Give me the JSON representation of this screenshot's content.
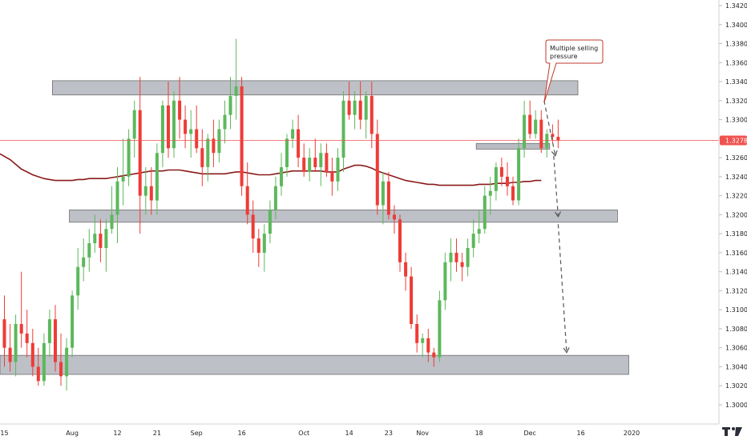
{
  "chart_data": {
    "type": "candlestick",
    "y_axis": {
      "ticks": [
        "1.34200",
        "1.34000",
        "1.33800",
        "1.33600",
        "1.33400",
        "1.33200",
        "1.33000",
        "1.32800",
        "1.32600",
        "1.32400",
        "1.32200",
        "1.32000",
        "1.31800",
        "1.31600",
        "1.31400",
        "1.31200",
        "1.31000",
        "1.30800",
        "1.30600",
        "1.30400",
        "1.30200",
        "1.30000"
      ],
      "range": [
        1.299,
        1.3428
      ]
    },
    "x_axis": {
      "ticks": [
        {
          "label": "15",
          "index": 0
        },
        {
          "label": "Aug",
          "index": 12
        },
        {
          "label": "12",
          "index": 20
        },
        {
          "label": "21",
          "index": 27
        },
        {
          "label": "Sep",
          "index": 34
        },
        {
          "label": "16",
          "index": 42
        },
        {
          "label": "Oct",
          "index": 53
        },
        {
          "label": "14",
          "index": 61
        },
        {
          "label": "23",
          "index": 68
        },
        {
          "label": "Nov",
          "index": 74
        },
        {
          "label": "18",
          "index": 84
        },
        {
          "label": "Dec",
          "index": 93
        },
        {
          "label": "16",
          "index": 102
        },
        {
          "label": "2020",
          "index": 111
        }
      ]
    },
    "current_price": "1.32782",
    "current_price_value": 1.32782,
    "colors": {
      "up": "#5cb85c",
      "down": "#ef3b36",
      "ma": "#8b1a1a",
      "zone_fill": "#b3b5bd",
      "zone_stroke": "#6e6e6e",
      "price_line": "#ef5350",
      "badge": "#ef5350",
      "arrow": "#555555",
      "callout_border": "#c0392b"
    },
    "candles": [
      [
        1.309,
        1.3115,
        1.304,
        1.306
      ],
      [
        1.306,
        1.3085,
        1.3035,
        1.3045
      ],
      [
        1.3045,
        1.3095,
        1.303,
        1.3085
      ],
      [
        1.3085,
        1.314,
        1.306,
        1.3075
      ],
      [
        1.3075,
        1.31,
        1.305,
        1.3065
      ],
      [
        1.3065,
        1.308,
        1.303,
        1.304
      ],
      [
        1.304,
        1.306,
        1.302,
        1.3025
      ],
      [
        1.3025,
        1.3075,
        1.302,
        1.3065
      ],
      [
        1.3065,
        1.31,
        1.305,
        1.309
      ],
      [
        1.309,
        1.3105,
        1.3035,
        1.3045
      ],
      [
        1.3045,
        1.3075,
        1.302,
        1.303
      ],
      [
        1.303,
        1.307,
        1.3015,
        1.306
      ],
      [
        1.306,
        1.312,
        1.305,
        1.3115
      ],
      [
        1.3115,
        1.3165,
        1.31,
        1.3145
      ],
      [
        1.3145,
        1.3175,
        1.313,
        1.3155
      ],
      [
        1.3155,
        1.3185,
        1.314,
        1.317
      ],
      [
        1.317,
        1.32,
        1.316,
        1.318
      ],
      [
        1.318,
        1.3195,
        1.315,
        1.3165
      ],
      [
        1.3165,
        1.3195,
        1.314,
        1.3185
      ],
      [
        1.3185,
        1.323,
        1.318,
        1.32
      ],
      [
        1.32,
        1.325,
        1.317,
        1.3235
      ],
      [
        1.3235,
        1.328,
        1.321,
        1.324
      ],
      [
        1.324,
        1.329,
        1.323,
        1.328
      ],
      [
        1.328,
        1.332,
        1.326,
        1.331
      ],
      [
        1.331,
        1.3345,
        1.318,
        1.322
      ],
      [
        1.322,
        1.325,
        1.32,
        1.323
      ],
      [
        1.323,
        1.325,
        1.32,
        1.3215
      ],
      [
        1.3215,
        1.3275,
        1.32,
        1.3265
      ],
      [
        1.3265,
        1.332,
        1.325,
        1.3315
      ],
      [
        1.3315,
        1.334,
        1.326,
        1.327
      ],
      [
        1.327,
        1.333,
        1.326,
        1.332
      ],
      [
        1.332,
        1.3345,
        1.328,
        1.33
      ],
      [
        1.33,
        1.3315,
        1.327,
        1.3285
      ],
      [
        1.3285,
        1.331,
        1.326,
        1.329
      ],
      [
        1.329,
        1.3315,
        1.3265,
        1.327
      ],
      [
        1.327,
        1.329,
        1.323,
        1.325
      ],
      [
        1.325,
        1.3285,
        1.3235,
        1.328
      ],
      [
        1.328,
        1.33,
        1.325,
        1.3265
      ],
      [
        1.3265,
        1.33,
        1.3255,
        1.329
      ],
      [
        1.329,
        1.332,
        1.3275,
        1.3305
      ],
      [
        1.3305,
        1.3345,
        1.329,
        1.3325
      ],
      [
        1.3325,
        1.3385,
        1.33,
        1.3335
      ],
      [
        1.3335,
        1.3345,
        1.322,
        1.323
      ],
      [
        1.323,
        1.3255,
        1.319,
        1.32
      ],
      [
        1.32,
        1.3215,
        1.316,
        1.3175
      ],
      [
        1.3175,
        1.3185,
        1.3145,
        1.316
      ],
      [
        1.316,
        1.319,
        1.314,
        1.318
      ],
      [
        1.318,
        1.3215,
        1.317,
        1.3205
      ],
      [
        1.3205,
        1.324,
        1.3195,
        1.323
      ],
      [
        1.323,
        1.3265,
        1.322,
        1.325
      ],
      [
        1.325,
        1.3285,
        1.324,
        1.328
      ],
      [
        1.328,
        1.33,
        1.327,
        1.329
      ],
      [
        1.329,
        1.3305,
        1.325,
        1.326
      ],
      [
        1.326,
        1.3275,
        1.324,
        1.3245
      ],
      [
        1.3245,
        1.327,
        1.3235,
        1.326
      ],
      [
        1.326,
        1.328,
        1.3245,
        1.325
      ],
      [
        1.325,
        1.3275,
        1.323,
        1.3265
      ],
      [
        1.3265,
        1.3275,
        1.324,
        1.3245
      ],
      [
        1.3245,
        1.326,
        1.322,
        1.3235
      ],
      [
        1.3235,
        1.327,
        1.3225,
        1.326
      ],
      [
        1.326,
        1.333,
        1.3245,
        1.332
      ],
      [
        1.332,
        1.334,
        1.33,
        1.3305
      ],
      [
        1.3305,
        1.333,
        1.329,
        1.332
      ],
      [
        1.332,
        1.334,
        1.329,
        1.33
      ],
      [
        1.33,
        1.333,
        1.328,
        1.3325
      ],
      [
        1.3325,
        1.334,
        1.327,
        1.3285
      ],
      [
        1.3285,
        1.33,
        1.32,
        1.321
      ],
      [
        1.321,
        1.3245,
        1.319,
        1.3235
      ],
      [
        1.3235,
        1.3245,
        1.3195,
        1.32
      ],
      [
        1.32,
        1.321,
        1.318,
        1.3195
      ],
      [
        1.3195,
        1.32,
        1.314,
        1.315
      ],
      [
        1.315,
        1.316,
        1.312,
        1.3135
      ],
      [
        1.3135,
        1.3145,
        1.308,
        1.3085
      ],
      [
        1.3085,
        1.3095,
        1.3055,
        1.3065
      ],
      [
        1.3065,
        1.3075,
        1.305,
        1.307
      ],
      [
        1.307,
        1.308,
        1.3045,
        1.3055
      ],
      [
        1.3055,
        1.306,
        1.304,
        1.305
      ],
      [
        1.305,
        1.312,
        1.3045,
        1.311
      ],
      [
        1.311,
        1.316,
        1.31,
        1.315
      ],
      [
        1.315,
        1.3175,
        1.313,
        1.316
      ],
      [
        1.316,
        1.3175,
        1.314,
        1.315
      ],
      [
        1.315,
        1.316,
        1.313,
        1.3145
      ],
      [
        1.3145,
        1.3175,
        1.3135,
        1.3165
      ],
      [
        1.3165,
        1.3195,
        1.3155,
        1.318
      ],
      [
        1.318,
        1.3205,
        1.317,
        1.3185
      ],
      [
        1.3185,
        1.323,
        1.318,
        1.322
      ],
      [
        1.322,
        1.324,
        1.32,
        1.3225
      ],
      [
        1.3225,
        1.3255,
        1.3215,
        1.325
      ],
      [
        1.325,
        1.326,
        1.323,
        1.324
      ],
      [
        1.324,
        1.3255,
        1.322,
        1.323
      ],
      [
        1.323,
        1.324,
        1.321,
        1.3215
      ],
      [
        1.3215,
        1.328,
        1.321,
        1.327
      ],
      [
        1.327,
        1.332,
        1.326,
        1.3305
      ],
      [
        1.3305,
        1.332,
        1.328,
        1.3285
      ],
      [
        1.3285,
        1.331,
        1.328,
        1.33
      ],
      [
        1.33,
        1.331,
        1.3265,
        1.327
      ],
      [
        1.327,
        1.329,
        1.326,
        1.3285
      ],
      [
        1.3285,
        1.3295,
        1.3275,
        1.3282
      ],
      [
        1.3282,
        1.33,
        1.327,
        1.3278
      ]
    ],
    "moving_average": [
      1.3264,
      1.3258,
      1.3253,
      1.3248,
      1.3245,
      1.3242,
      1.324,
      1.3238,
      1.3237,
      1.3236,
      1.3236,
      1.3236,
      1.3236,
      1.3237,
      1.3237,
      1.3238,
      1.3238,
      1.3238,
      1.3238,
      1.3239,
      1.324,
      1.3241,
      1.3242,
      1.3243,
      1.3244,
      1.3245,
      1.3246,
      1.3246,
      1.3246,
      1.3247,
      1.3247,
      1.3247,
      1.3246,
      1.3245,
      1.3244,
      1.3243,
      1.3243,
      1.3243,
      1.3243,
      1.3243,
      1.3244,
      1.3245,
      1.3245,
      1.3244,
      1.3243,
      1.3242,
      1.3242,
      1.3242,
      1.3243,
      1.3244,
      1.3245,
      1.3246,
      1.3246,
      1.3246,
      1.3246,
      1.3246,
      1.3246,
      1.3245,
      1.3245,
      1.3245,
      1.3248,
      1.325,
      1.3252,
      1.3252,
      1.3251,
      1.3249,
      1.3246,
      1.3244,
      1.3242,
      1.324,
      1.3238,
      1.3236,
      1.3235,
      1.3234,
      1.3233,
      1.3232,
      1.3232,
      1.3231,
      1.3231,
      1.3231,
      1.3231,
      1.3231,
      1.3231,
      1.3231,
      1.3232,
      1.3232,
      1.3232,
      1.3233,
      1.3233,
      1.3233,
      1.3234,
      1.3234,
      1.3235,
      1.3235,
      1.3236,
      1.3236
    ],
    "zones": [
      {
        "name": "resistance",
        "top": 1.3341,
        "bottom": 1.3326,
        "from_index": 9,
        "to_index": 101
      },
      {
        "name": "support-mid",
        "top": 1.3205,
        "bottom": 1.3192,
        "from_index": 12,
        "to_index": 108
      },
      {
        "name": "support-low",
        "top": 1.3052,
        "bottom": 1.3032,
        "from_index": -1,
        "to_index": 110
      },
      {
        "name": "small-box",
        "top": 1.3275,
        "bottom": 1.3269,
        "from_index": 84,
        "to_index": 96
      }
    ],
    "annotation": {
      "text": [
        "Multiple selling",
        "pressure"
      ]
    },
    "projection": [
      {
        "from": [
          95.5,
          1.332
        ],
        "to": [
          97.5,
          1.3262
        ]
      },
      {
        "from": [
          97.2,
          1.3262
        ],
        "to": [
          98.0,
          1.3198
        ]
      },
      {
        "from": [
          98.0,
          1.319
        ],
        "to": [
          99.5,
          1.3055
        ]
      }
    ]
  }
}
